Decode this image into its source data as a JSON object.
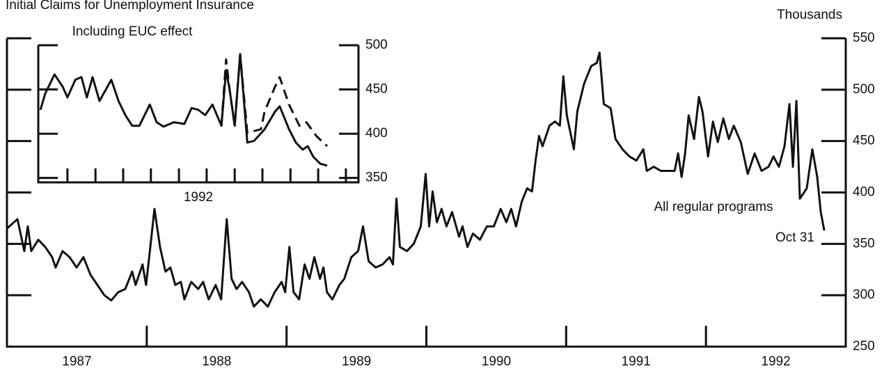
{
  "chart_data": [
    {
      "type": "line",
      "title": "Initial Claims for Unemployment Insurance",
      "y_axis_label": "Thousands",
      "annotations": [
        "Oct 31"
      ],
      "xlim": [
        1987,
        1993
      ],
      "xticks": [
        1988,
        1989,
        1990,
        1991,
        1992
      ],
      "x_labels": [
        "1987",
        "1988",
        "1989",
        "1990",
        "1991",
        "1992"
      ],
      "ylim": [
        250,
        550
      ],
      "yticks": [
        250,
        300,
        350,
        400,
        450,
        500,
        550
      ],
      "series": [
        {
          "name": "All regular programs",
          "color": "#111111",
          "x": [
            1987.0,
            1987.075,
            1987.124,
            1987.149,
            1987.174,
            1987.224,
            1987.274,
            1987.323,
            1987.348,
            1987.398,
            1987.448,
            1987.498,
            1987.547,
            1987.597,
            1987.647,
            1987.697,
            1987.746,
            1987.796,
            1987.846,
            1987.896,
            1987.92,
            1987.97,
            1987.995,
            1988.02,
            1988.055,
            1988.095,
            1988.134,
            1988.169,
            1988.204,
            1988.244,
            1988.269,
            1988.318,
            1988.368,
            1988.403,
            1988.443,
            1988.493,
            1988.532,
            1988.572,
            1988.607,
            1988.642,
            1988.682,
            1988.731,
            1988.766,
            1988.816,
            1988.866,
            1988.915,
            1988.965,
            1988.99,
            1989.02,
            1989.05,
            1989.09,
            1989.129,
            1989.164,
            1989.199,
            1989.239,
            1989.264,
            1989.289,
            1989.328,
            1989.378,
            1989.413,
            1989.463,
            1989.512,
            1989.547,
            1989.587,
            1989.637,
            1989.687,
            1989.736,
            1989.761,
            1989.786,
            1989.811,
            1989.861,
            1989.91,
            1989.96,
            1989.995,
            1990.02,
            1990.045,
            1990.075,
            1990.109,
            1990.144,
            1990.184,
            1990.234,
            1990.259,
            1990.294,
            1990.333,
            1990.383,
            1990.433,
            1990.483,
            1990.532,
            1990.572,
            1990.607,
            1990.642,
            1990.682,
            1990.721,
            1990.756,
            1990.781,
            1990.806,
            1990.831,
            1990.881,
            1990.92,
            1990.955,
            1990.98,
            1991.005,
            1991.055,
            1991.08,
            1991.129,
            1991.179,
            1991.219,
            1991.239,
            1991.269,
            1991.318,
            1991.353,
            1991.403,
            1991.453,
            1991.502,
            1991.552,
            1991.577,
            1991.627,
            1991.677,
            1991.726,
            1991.776,
            1991.801,
            1991.826,
            1991.851,
            1991.876,
            1991.915,
            1991.95,
            1991.975,
            1992.015,
            1992.05,
            1992.085,
            1992.124,
            1992.164,
            1992.199,
            1992.249,
            1992.299,
            1992.348,
            1992.398,
            1992.448,
            1992.483,
            1992.522,
            1992.562,
            1992.597,
            1992.622,
            1992.647,
            1992.672,
            1992.721,
            1992.761,
            1992.796,
            1992.821,
            1992.846
          ],
          "values": [
            365,
            374,
            343,
            367,
            343,
            354,
            347,
            337,
            327,
            343,
            337,
            327,
            337,
            320,
            310,
            300,
            295,
            303,
            306,
            323,
            310,
            330,
            310,
            340,
            384,
            347,
            323,
            327,
            310,
            313,
            296,
            313,
            306,
            313,
            296,
            310,
            296,
            374,
            316,
            306,
            313,
            303,
            289,
            296,
            289,
            303,
            313,
            303,
            347,
            303,
            296,
            330,
            316,
            337,
            316,
            327,
            303,
            296,
            310,
            316,
            337,
            343,
            367,
            333,
            327,
            330,
            337,
            330,
            394,
            347,
            343,
            350,
            367,
            418,
            367,
            401,
            371,
            384,
            367,
            381,
            357,
            367,
            347,
            360,
            354,
            367,
            367,
            384,
            371,
            384,
            367,
            391,
            404,
            401,
            431,
            455,
            445,
            465,
            469,
            465,
            513,
            475,
            442,
            479,
            506,
            523,
            526,
            536,
            486,
            482,
            452,
            442,
            435,
            431,
            442,
            421,
            425,
            421,
            421,
            421,
            438,
            415,
            438,
            475,
            452,
            493,
            479,
            435,
            469,
            449,
            472,
            452,
            465,
            449,
            418,
            438,
            421,
            425,
            435,
            425,
            445,
            486,
            425,
            489,
            394,
            404,
            442,
            415,
            381,
            363
          ]
        }
      ]
    },
    {
      "type": "line",
      "x_labels": [
        "1992"
      ],
      "xlim": [
        1992,
        1992.89
      ],
      "xticks": [
        1992.081,
        1992.159,
        1992.236,
        1992.313,
        1992.391,
        1992.468,
        1992.546,
        1992.623,
        1992.701,
        1992.778,
        1992.855
      ],
      "ylim": [
        345,
        500
      ],
      "yticks": [
        350,
        400,
        450,
        500
      ],
      "series": [
        {
          "color": "#111111",
          "dashed": false,
          "x": [
            1992.006,
            1992.019,
            1992.045,
            1992.068,
            1992.081,
            1992.103,
            1992.12,
            1992.135,
            1992.151,
            1992.17,
            1992.203,
            1992.223,
            1992.242,
            1992.261,
            1992.281,
            1992.31,
            1992.329,
            1992.348,
            1992.377,
            1992.406,
            1992.426,
            1992.445,
            1992.464,
            1992.484,
            1992.509,
            1992.522,
            1992.532,
            1992.546,
            1992.561,
            1992.581,
            1992.6,
            1992.629,
            1992.658,
            1992.671,
            1992.697,
            1992.716,
            1992.735,
            1992.749,
            1992.764,
            1992.784,
            1992.803
          ],
          "values": [
            427,
            445,
            467,
            453,
            441,
            461,
            464,
            441,
            464,
            437,
            461,
            437,
            421,
            409,
            409,
            433,
            413,
            408,
            413,
            411,
            429,
            427,
            421,
            433,
            409,
            472,
            449,
            409,
            490,
            390,
            392,
            405,
            425,
            431,
            405,
            390,
            382,
            386,
            374,
            366,
            364
          ]
        },
        {
          "name": "Including EUC effect",
          "color": "#111111",
          "dashed": true,
          "x": [
            1992.509,
            1992.522,
            1992.532,
            1992.546,
            1992.561,
            1992.581,
            1992.619,
            1992.629,
            1992.658,
            1992.671,
            1992.697,
            1992.726,
            1992.745,
            1992.774,
            1992.803
          ],
          "values": [
            409,
            484,
            449,
            409,
            490,
            401,
            405,
            425,
            453,
            464,
            433,
            409,
            413,
            397,
            386
          ]
        }
      ]
    }
  ]
}
